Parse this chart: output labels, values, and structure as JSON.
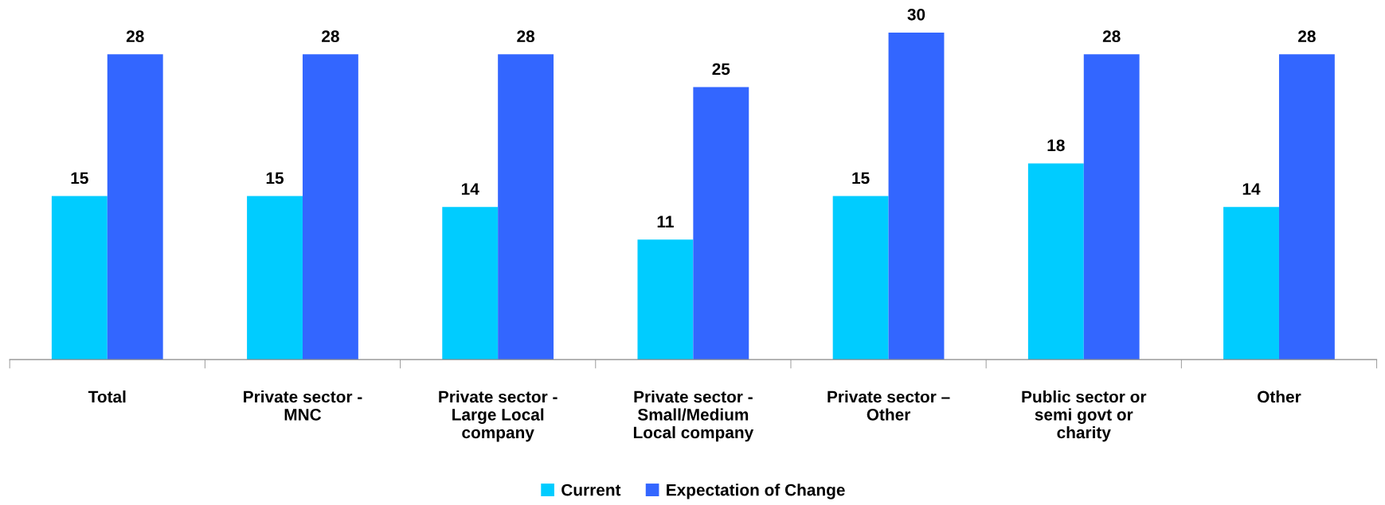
{
  "chart_data": {
    "type": "bar",
    "categories": [
      "Total",
      "Private sector -\nMNC",
      "Private sector -\nLarge Local\ncompany",
      "Private sector -\nSmall/Medium\nLocal company",
      "Private sector –\nOther",
      "Public sector or\nsemi govt or\ncharity",
      "Other"
    ],
    "series": [
      {
        "name": "Current",
        "color": "#00ccff",
        "values": [
          15,
          15,
          14,
          11,
          15,
          18,
          14
        ]
      },
      {
        "name": "Expectation of Change",
        "color": "#3366ff",
        "values": [
          28,
          28,
          28,
          25,
          30,
          28,
          28
        ]
      }
    ],
    "data_labels": true,
    "legend": "bottom",
    "grid": false
  }
}
